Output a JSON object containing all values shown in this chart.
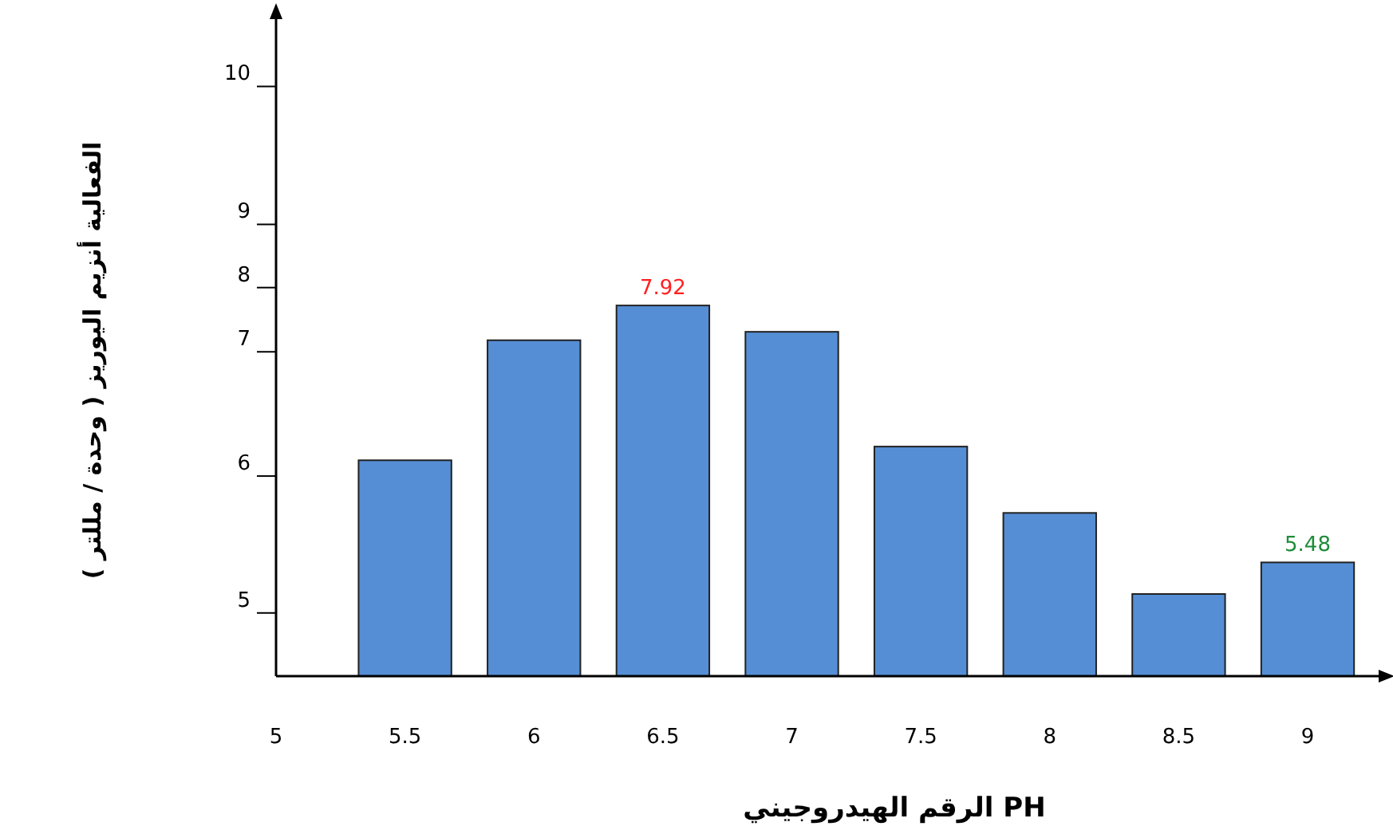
{
  "chart_data": {
    "type": "bar",
    "xlabel": "الرقم الهيدروجيني PH",
    "ylabel": "الفعالية أنزيم اليوريز ( وحدة / مللتر )",
    "x": [
      5.5,
      6,
      6.5,
      7,
      7.5,
      8,
      8.5,
      9
    ],
    "values": [
      6.45,
      7.59,
      7.92,
      7.67,
      6.58,
      5.95,
      5.18,
      5.48
    ],
    "value_labels": [
      null,
      null,
      "7.92",
      null,
      null,
      null,
      null,
      "5.48"
    ],
    "color": "#558ed5",
    "xlim": [
      5,
      9.3
    ],
    "xticks": [
      5,
      5.5,
      6,
      6.5,
      7,
      7.5,
      8,
      8.5,
      9
    ],
    "ylim": [
      4.4,
      10.7
    ],
    "yticks": [
      5,
      {
        "value": 6.3,
        "label": "6"
      },
      {
        "value": 7.48,
        "label": "7"
      },
      {
        "value": 8.09,
        "label": "8"
      },
      {
        "value": 8.69,
        "label": "9"
      },
      10
    ],
    "grid": false
  }
}
